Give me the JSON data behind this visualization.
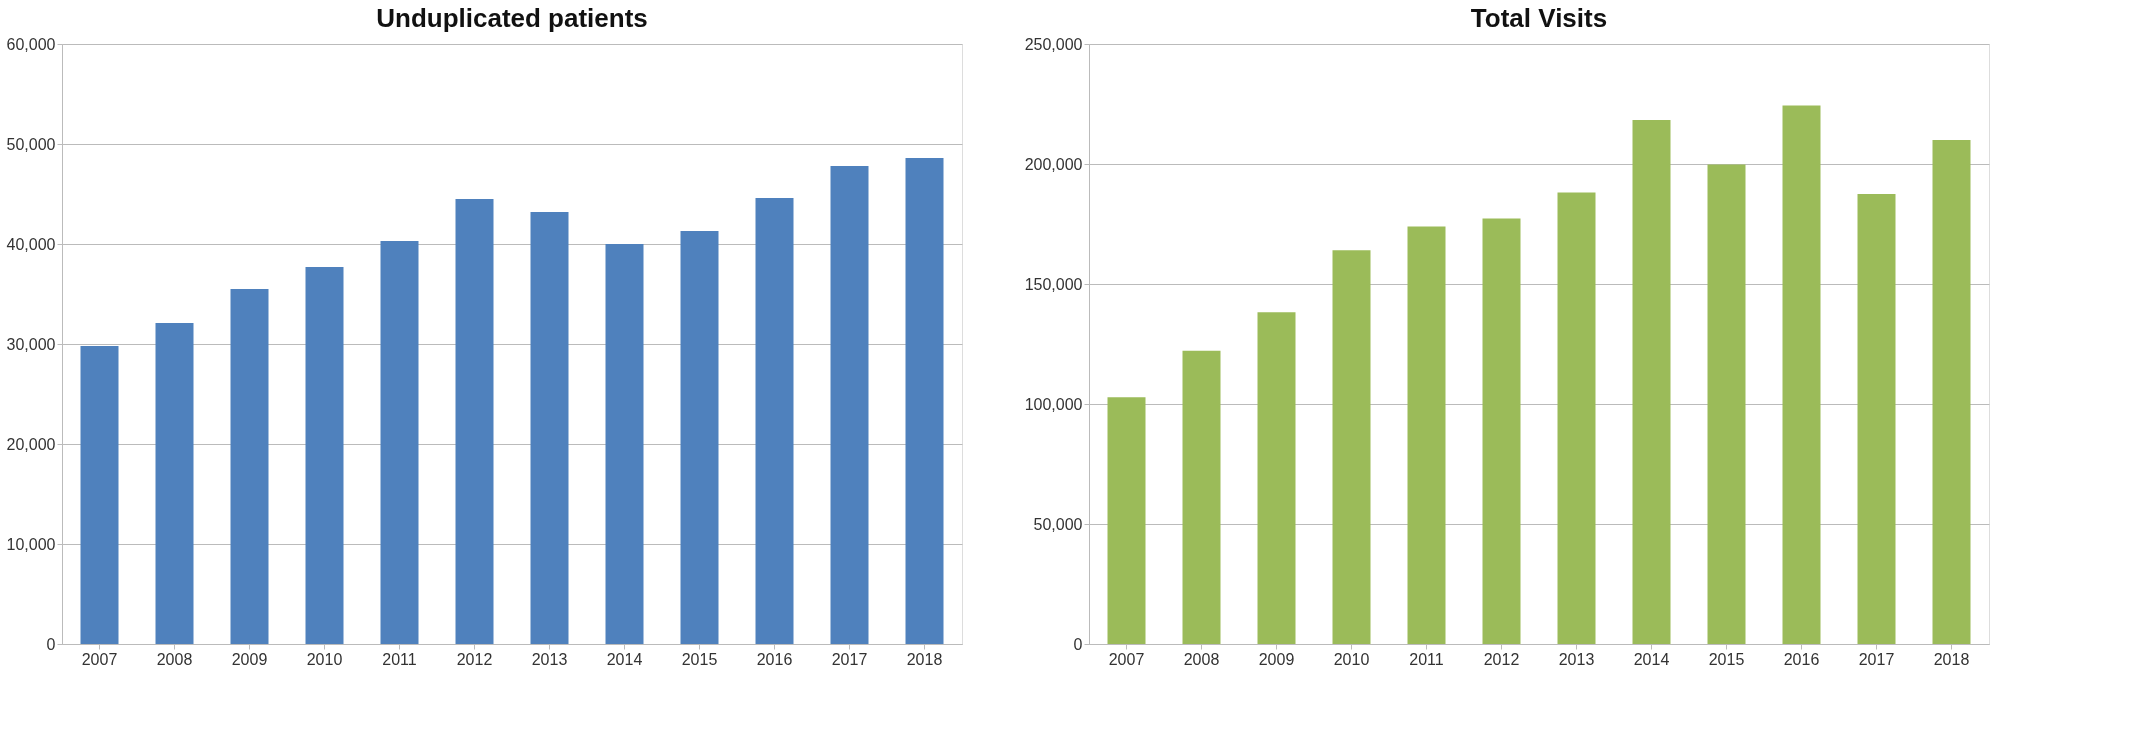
{
  "chart_data": [
    {
      "type": "bar",
      "title": "Unduplicated patients",
      "categories": [
        "2007",
        "2008",
        "2009",
        "2010",
        "2011",
        "2012",
        "2013",
        "2014",
        "2015",
        "2016",
        "2017",
        "2018"
      ],
      "values": [
        29800,
        32100,
        35500,
        37700,
        40300,
        44500,
        43200,
        40000,
        41300,
        44600,
        47800,
        48600
      ],
      "color": "#4f81bd",
      "ylim": [
        0,
        60000
      ],
      "yticks": [
        0,
        {
          "value": 10000,
          "label": "10,000"
        },
        {
          "value": 20000,
          "label": "20,000"
        },
        {
          "value": 30000,
          "label": "30,000"
        },
        {
          "value": 40000,
          "label": "40,000"
        },
        {
          "value": 50000,
          "label": "50,000"
        },
        {
          "value": 60000,
          "label": "60,000"
        }
      ],
      "grid": "y"
    },
    {
      "type": "bar",
      "title": "Total Visits",
      "categories": [
        "2007",
        "2008",
        "2009",
        "2010",
        "2011",
        "2012",
        "2013",
        "2014",
        "2015",
        "2016",
        "2017",
        "2018"
      ],
      "values": [
        102800,
        122200,
        138200,
        164100,
        174000,
        177300,
        188100,
        218300,
        199800,
        224400,
        187500,
        210000
      ],
      "color": "#9bbb59",
      "ylim": [
        0,
        250000
      ],
      "yticks": [
        0,
        {
          "value": 50000,
          "label": "50,000"
        },
        {
          "value": 100000,
          "label": "100,000"
        },
        {
          "value": 150000,
          "label": "150,000"
        },
        {
          "value": 200000,
          "label": "200,000"
        },
        {
          "value": 250000,
          "label": "250,000"
        }
      ],
      "grid": "y"
    }
  ]
}
